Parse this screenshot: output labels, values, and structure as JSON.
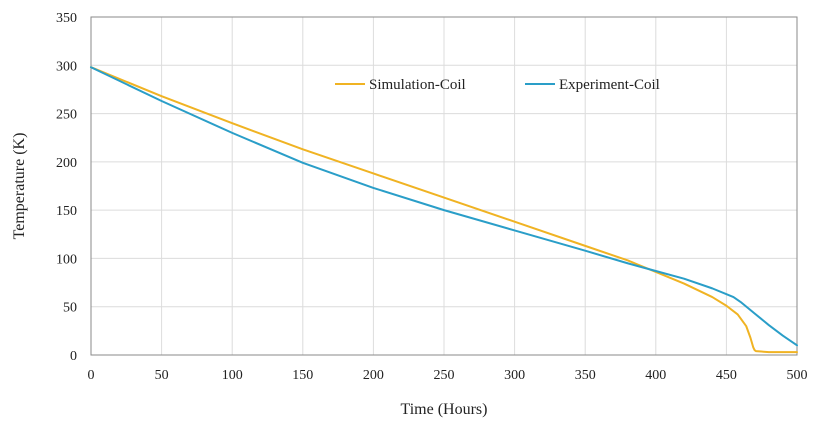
{
  "chart_data": {
    "type": "line",
    "xlabel": "Time (Hours)",
    "ylabel": "Temperature (K)",
    "xlim": [
      0,
      500
    ],
    "ylim": [
      0,
      350
    ],
    "xticks": [
      0,
      50,
      100,
      150,
      200,
      250,
      300,
      350,
      400,
      450,
      500
    ],
    "yticks": [
      0,
      50,
      100,
      150,
      200,
      250,
      300,
      350
    ],
    "grid": true,
    "legend_position": "top-right",
    "series": [
      {
        "name": "Simulation-Coil",
        "color": "#f0b323",
        "points": [
          [
            0,
            298
          ],
          [
            50,
            268
          ],
          [
            100,
            240
          ],
          [
            150,
            213
          ],
          [
            200,
            188
          ],
          [
            250,
            163
          ],
          [
            300,
            138
          ],
          [
            350,
            113
          ],
          [
            380,
            98
          ],
          [
            400,
            86
          ],
          [
            420,
            74
          ],
          [
            440,
            60
          ],
          [
            450,
            51
          ],
          [
            458,
            42
          ],
          [
            464,
            30
          ],
          [
            467,
            18
          ],
          [
            469,
            8
          ],
          [
            470,
            5
          ],
          [
            471,
            4
          ],
          [
            480,
            3
          ],
          [
            490,
            3
          ],
          [
            500,
            3
          ]
        ]
      },
      {
        "name": "Experiment-Coil",
        "color": "#2a9ec8",
        "points": [
          [
            0,
            298
          ],
          [
            50,
            263
          ],
          [
            100,
            230
          ],
          [
            150,
            199
          ],
          [
            200,
            173
          ],
          [
            250,
            150
          ],
          [
            300,
            129
          ],
          [
            350,
            108
          ],
          [
            380,
            95
          ],
          [
            400,
            87
          ],
          [
            420,
            79
          ],
          [
            440,
            69
          ],
          [
            455,
            60
          ],
          [
            460,
            55
          ],
          [
            470,
            43
          ],
          [
            480,
            31
          ],
          [
            490,
            20
          ],
          [
            500,
            10
          ]
        ]
      }
    ]
  }
}
